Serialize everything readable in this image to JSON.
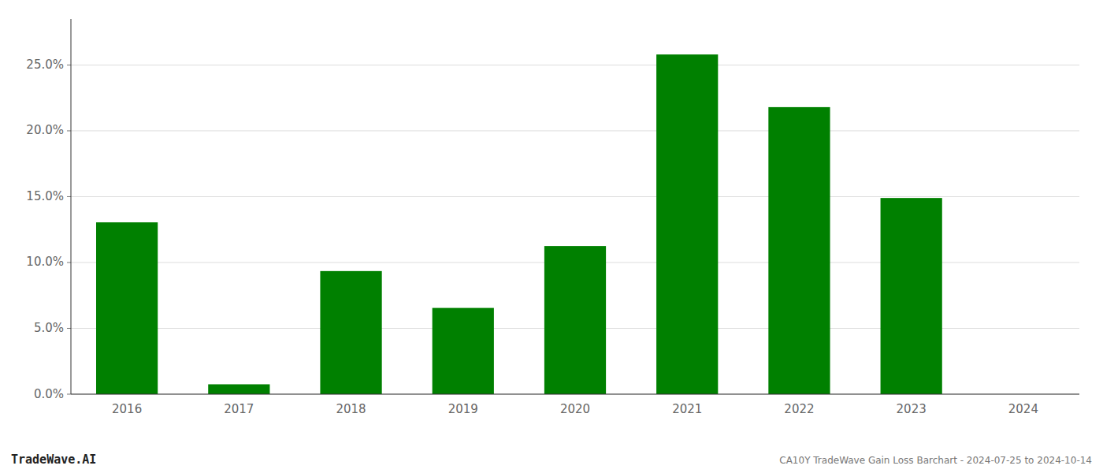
{
  "chart_data": {
    "type": "bar",
    "title": "CA10Y TradeWave Gain Loss Barchart - 2024-07-25 to 2024-10-14",
    "annotations": [
      "TradeWave.AI"
    ],
    "categories": [
      "2016",
      "2017",
      "2018",
      "2019",
      "2020",
      "2021",
      "2022",
      "2023",
      "2024"
    ],
    "values": [
      0.1305,
      0.0075,
      0.0935,
      0.0655,
      0.1125,
      0.258,
      0.218,
      0.149,
      0.0
    ],
    "color": "#008000",
    "ylim": [
      0,
      0.285
    ],
    "yticks": [
      {
        "value": 0.0,
        "label": "0.0%"
      },
      {
        "value": 0.05,
        "label": "5.0%"
      },
      {
        "value": 0.1,
        "label": "10.0%"
      },
      {
        "value": 0.15,
        "label": "15.0%"
      },
      {
        "value": 0.2,
        "label": "20.0%"
      },
      {
        "value": 0.25,
        "label": "25.0%"
      }
    ],
    "grid": true
  }
}
